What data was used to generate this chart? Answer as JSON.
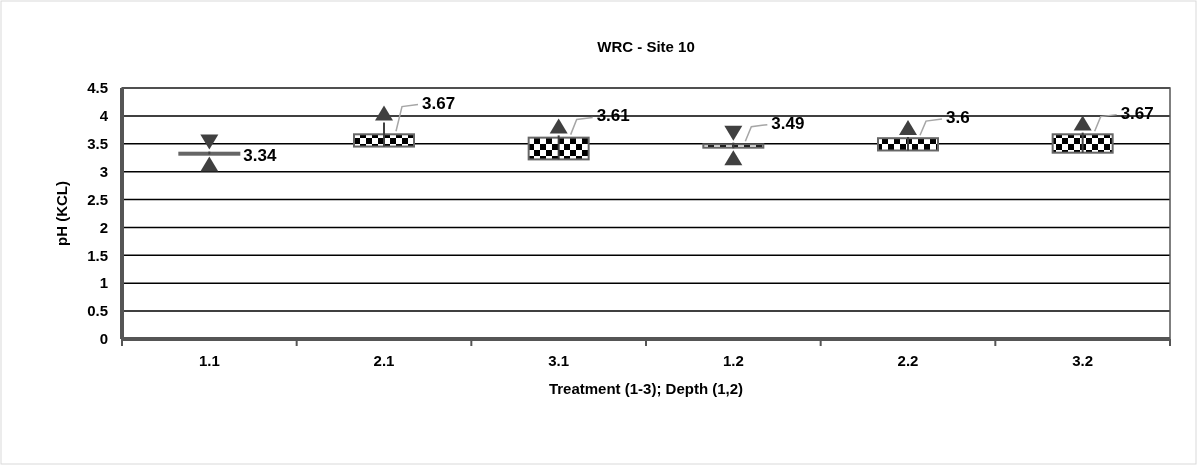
{
  "chart_data": {
    "type": "candlestick",
    "title": "WRC - Site 10",
    "xlabel": "Treatment (1-3); Depth (1,2)",
    "ylabel": "pH (KCL)",
    "categories": [
      "1.1",
      "2.1",
      "3.1",
      "1.2",
      "2.2",
      "3.2"
    ],
    "ohlc": [
      [
        3.33,
        3.36,
        3.31,
        3.34
      ],
      [
        3.45,
        3.88,
        3.45,
        3.67
      ],
      [
        3.22,
        3.65,
        3.22,
        3.61
      ],
      [
        3.43,
        3.52,
        3.42,
        3.49
      ],
      [
        3.38,
        3.62,
        3.38,
        3.6
      ],
      [
        3.34,
        3.7,
        3.34,
        3.67
      ]
    ],
    "value_labels": [
      "3.34",
      "3.67",
      "3.61",
      "3.49",
      "3.6",
      "3.67"
    ],
    "ylim": [
      0,
      4.5
    ],
    "yticks": [
      0,
      0.5,
      1,
      1.5,
      2,
      2.5,
      3,
      3.5,
      4,
      4.5
    ],
    "grid": "y",
    "marker": "triangle"
  }
}
